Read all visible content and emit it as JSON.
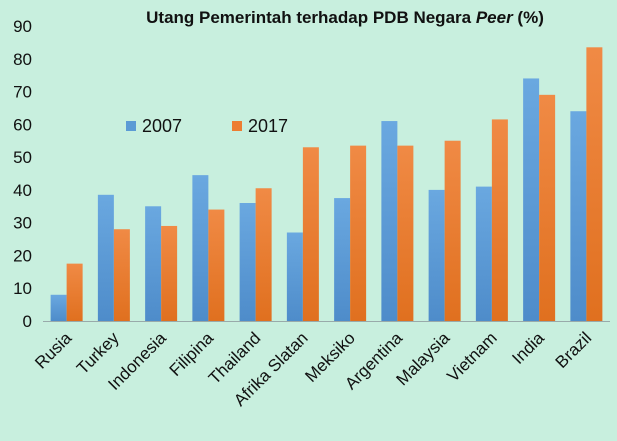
{
  "chart_data": {
    "type": "bar",
    "title_main": "Utang Pemerintah terhadap PDB Negara ",
    "title_emph": "Peer",
    "title_tail": " (%)",
    "categories": [
      "Rusia",
      "Turkey",
      "Indonesia",
      "Filipina",
      "Thailand",
      "Afrika Slatan",
      "Meksiko",
      "Argentina",
      "Malaysia",
      "Vietnam",
      "India",
      "Brazil"
    ],
    "series": [
      {
        "name": "2007",
        "color": "#5b9bd5",
        "values": [
          8,
          38.5,
          35,
          44.5,
          36,
          27,
          37.5,
          61,
          40,
          41,
          74,
          64
        ]
      },
      {
        "name": "2017",
        "color": "#ed7d31",
        "values": [
          17.5,
          28,
          29,
          34,
          40.5,
          53,
          53.5,
          53.5,
          55,
          61.5,
          69,
          83.5
        ]
      }
    ],
    "ylim": [
      0,
      90
    ],
    "yticks": [
      0,
      10,
      20,
      30,
      40,
      50,
      60,
      70,
      80,
      90
    ],
    "grid": false,
    "legend_position": "upper-left-inside"
  }
}
